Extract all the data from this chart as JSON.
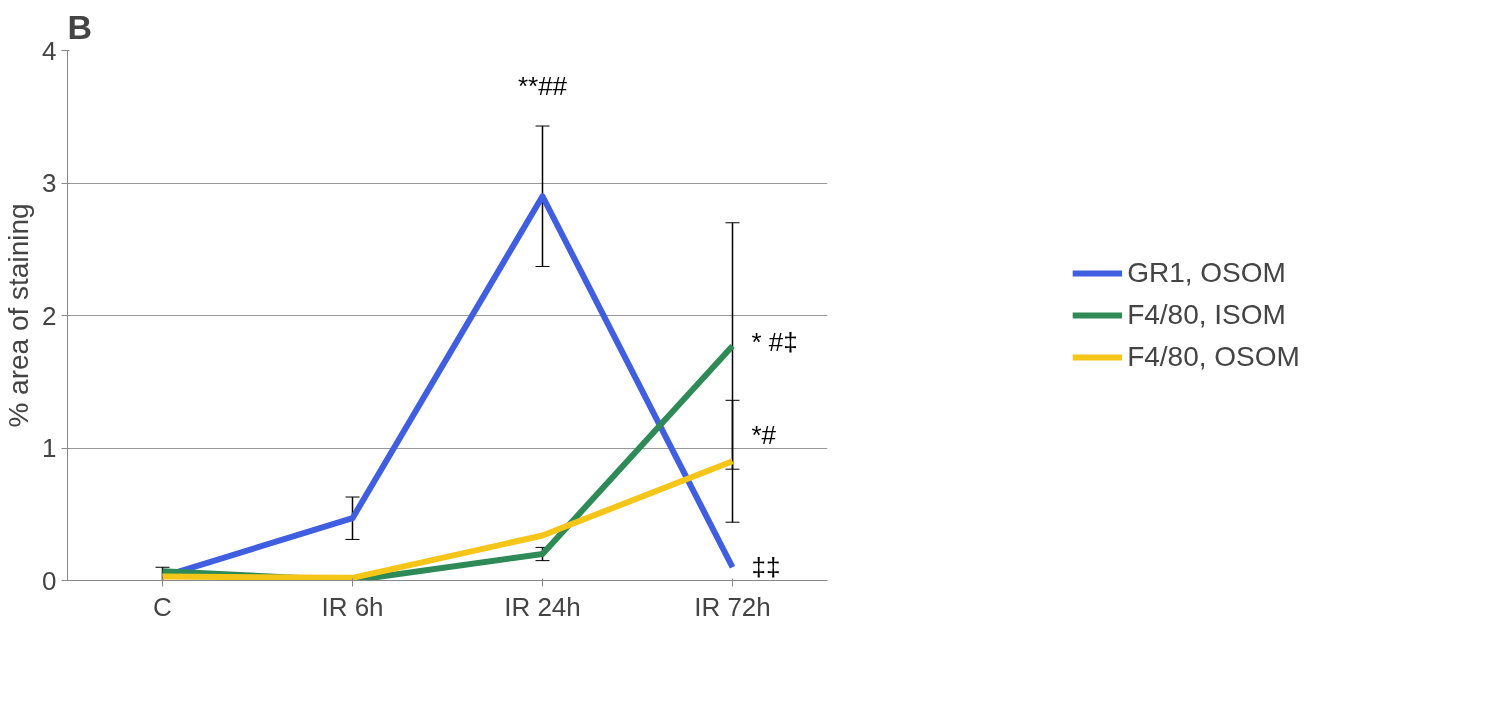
{
  "chart_data": {
    "type": "line",
    "title": "B",
    "ylabel": "% area of staining",
    "categories": [
      "C",
      "IR 6h",
      "IR 24h",
      "IR 72h"
    ],
    "series": [
      {
        "name": "GR1, OSOM",
        "color": "#3f5fe0",
        "values": [
          0.03,
          0.47,
          2.9,
          0.1
        ],
        "errors": [
          0.07,
          0.16,
          0.53,
          null
        ]
      },
      {
        "name": "F4/80, ISOM",
        "color": "#2e8b57",
        "values": [
          0.07,
          0.0,
          0.2,
          1.77
        ],
        "errors": [
          null,
          null,
          0.05,
          0.93
        ]
      },
      {
        "name": "F4/80, OSOM",
        "color": "#f5c518",
        "values": [
          0.03,
          0.02,
          0.34,
          0.9
        ],
        "errors": [
          null,
          null,
          null,
          0.46
        ]
      }
    ],
    "ylim": [
      0,
      4
    ],
    "yticks": [
      0,
      1,
      2,
      3,
      4
    ],
    "grid": "y",
    "legend": "right",
    "marker": "none",
    "line_style": "solid",
    "annotations": [
      {
        "text": "**##",
        "x": "IR 24h",
        "y": 3.43
      },
      {
        "text": "* #‡",
        "x": "IR 72h",
        "y": 1.8
      },
      {
        "text": "*#",
        "x": "IR 72h",
        "y": 1.1
      },
      {
        "text": "‡‡",
        "x": "IR 72h",
        "y": 0.1
      }
    ]
  }
}
